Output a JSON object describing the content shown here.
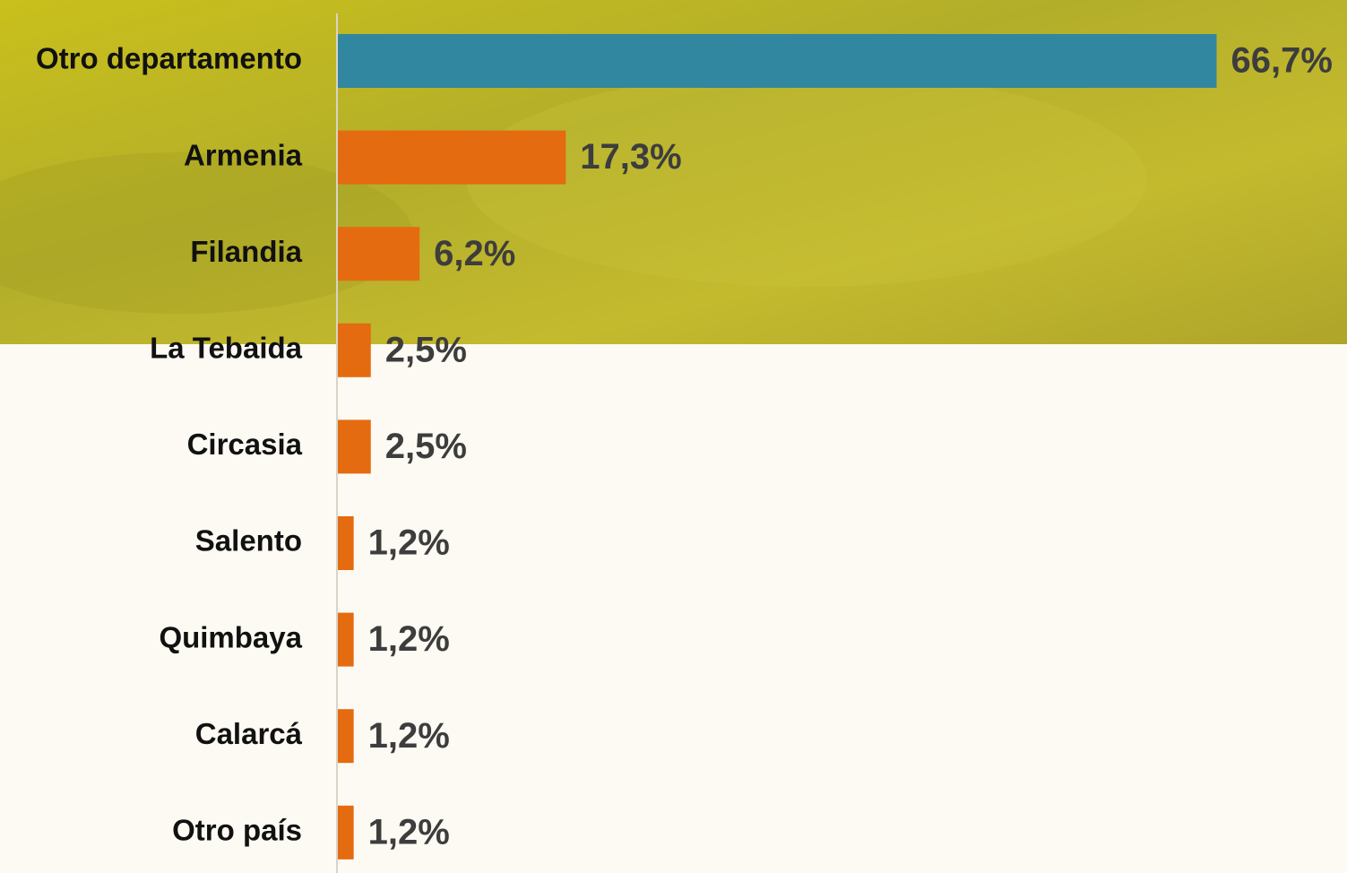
{
  "chart_data": {
    "type": "hbar",
    "categories": [
      "Otro departamento",
      "Armenia",
      "Filandia",
      "La Tebaida",
      "Circasia",
      "Salento",
      "Quimbaya",
      "Calarcá",
      "Otro país"
    ],
    "values": [
      66.7,
      17.3,
      6.2,
      2.5,
      2.5,
      1.2,
      1.2,
      1.2,
      1.2
    ],
    "value_labels": [
      "66,7%",
      "17,3%",
      "6,2%",
      "2,5%",
      "2,5%",
      "1,2%",
      "1,2%",
      "1,2%",
      "1,2%"
    ],
    "colors": [
      "#31879f",
      "#e46b10",
      "#e46b10",
      "#e46b10",
      "#e46b10",
      "#e46b10",
      "#e46b10",
      "#e46b10",
      "#e46b10"
    ]
  }
}
